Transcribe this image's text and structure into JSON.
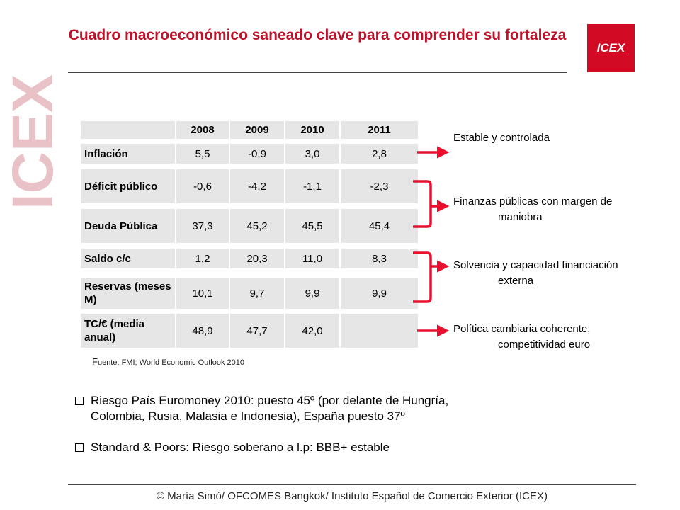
{
  "watermark": {
    "text": "ICEX",
    "color": "#e8c2c6"
  },
  "header": {
    "title": "Cuadro macroeconómico saneado clave para comprender su fortaleza",
    "logo_text": "ICEX",
    "brand_color": "#d20a24"
  },
  "table": {
    "years": [
      "2008",
      "2009",
      "2010",
      "2011"
    ],
    "rows": [
      {
        "label": "Inflación",
        "values": [
          "5,5",
          "-0,9",
          "3,0",
          "2,8"
        ]
      },
      {
        "label": "Déficit público",
        "values": [
          "-0,6",
          "-4,2",
          "-1,1",
          "-2,3"
        ]
      },
      {
        "label": "Deuda Pública",
        "values": [
          "37,3",
          "45,2",
          "45,5",
          "45,4"
        ]
      },
      {
        "label": "Saldo c/c",
        "values": [
          "1,2",
          "20,3",
          "11,0",
          "8,3"
        ]
      },
      {
        "label": "Reservas (meses M)",
        "values": [
          "10,1",
          "9,7",
          "9,9",
          "9,9"
        ]
      },
      {
        "label": "TC/€ (media anual)",
        "values": [
          "48,9",
          "47,7",
          "42,0",
          ""
        ]
      }
    ],
    "source_initial": "F",
    "source_rest": "uente: FMI; World Economic Outlook 2010"
  },
  "assessments": [
    {
      "line1": "Estable y controlada",
      "line2": ""
    },
    {
      "line1": "Finanzas públicas con margen de",
      "line2": "maniobra"
    },
    {
      "line1": "Solvencia y capacidad financiación",
      "line2": "externa"
    },
    {
      "line1": "Política cambiaria coherente,",
      "line2": "competitividad euro"
    }
  ],
  "arrow_color": "#e8102e",
  "bullets": [
    {
      "line1": "Riesgo País Euromoney 2010: puesto 45º (por delante de Hungría,",
      "line2": "Colombia, Rusia, Malasia e Indonesia), España puesto 37º"
    },
    {
      "line1": "Standard  & Poors: Riesgo soberano a l.p: BBB+ estable",
      "line2": ""
    }
  ],
  "footer": "© María Simó/ OFCOMES Bangkok/ Instituto Español de Comercio Exterior (ICEX)"
}
